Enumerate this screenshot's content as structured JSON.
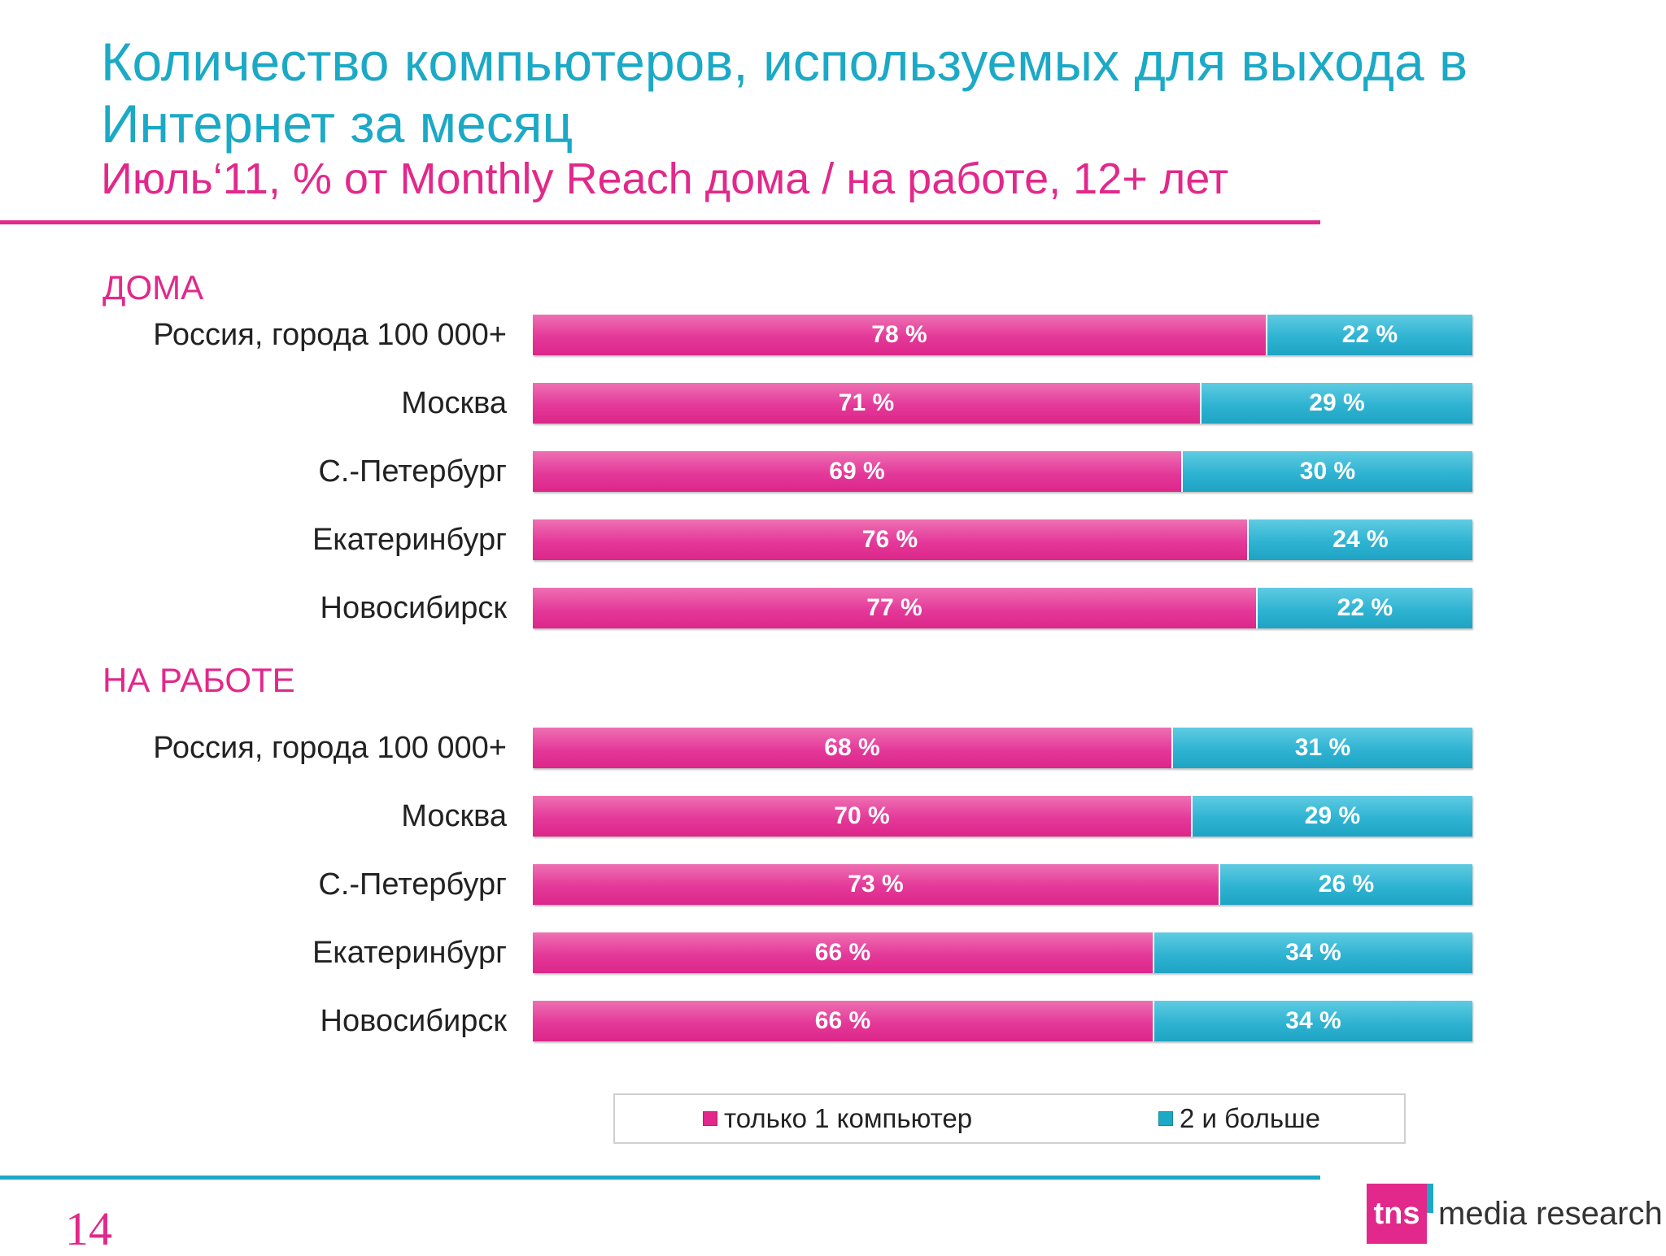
{
  "header": {
    "title": "Количество компьютеров, используемых для выхода в Интернет за месяц",
    "subtitle": "Июль‘11, % от Monthly Reach дома / на работе, 12+ лет"
  },
  "colors": {
    "pink": "#e2288b",
    "blue": "#1ba9c6"
  },
  "chart_data": {
    "type": "bar",
    "orientation": "horizontal",
    "stacked": true,
    "legend": {
      "placement": "bottom",
      "entries": [
        "только 1 компьютер",
        "2 и больше"
      ]
    },
    "groups": [
      {
        "name": "ДОМА",
        "categories": [
          "Россия, города 100 000+",
          "Москва",
          "С.-Петербург",
          "Екатеринбург",
          "Новосибирск"
        ],
        "series": [
          {
            "name": "только 1 компьютер",
            "values": [
              78,
              71,
              69,
              76,
              77
            ]
          },
          {
            "name": "2 и больше",
            "values": [
              22,
              29,
              30,
              24,
              22
            ]
          }
        ]
      },
      {
        "name": "НА РАБОТЕ",
        "categories": [
          "Россия, города 100 000+",
          "Москва",
          "С.-Петербург",
          "Екатеринбург",
          "Новосибирск"
        ],
        "series": [
          {
            "name": "только 1 компьютер",
            "values": [
              68,
              70,
              73,
              66,
              66
            ]
          },
          {
            "name": "2 и больше",
            "values": [
              31,
              29,
              26,
              34,
              34
            ]
          }
        ]
      }
    ],
    "value_suffix": " %"
  },
  "footer": {
    "page_number": "14",
    "logo_mark": "tns",
    "logo_text": "media research"
  }
}
